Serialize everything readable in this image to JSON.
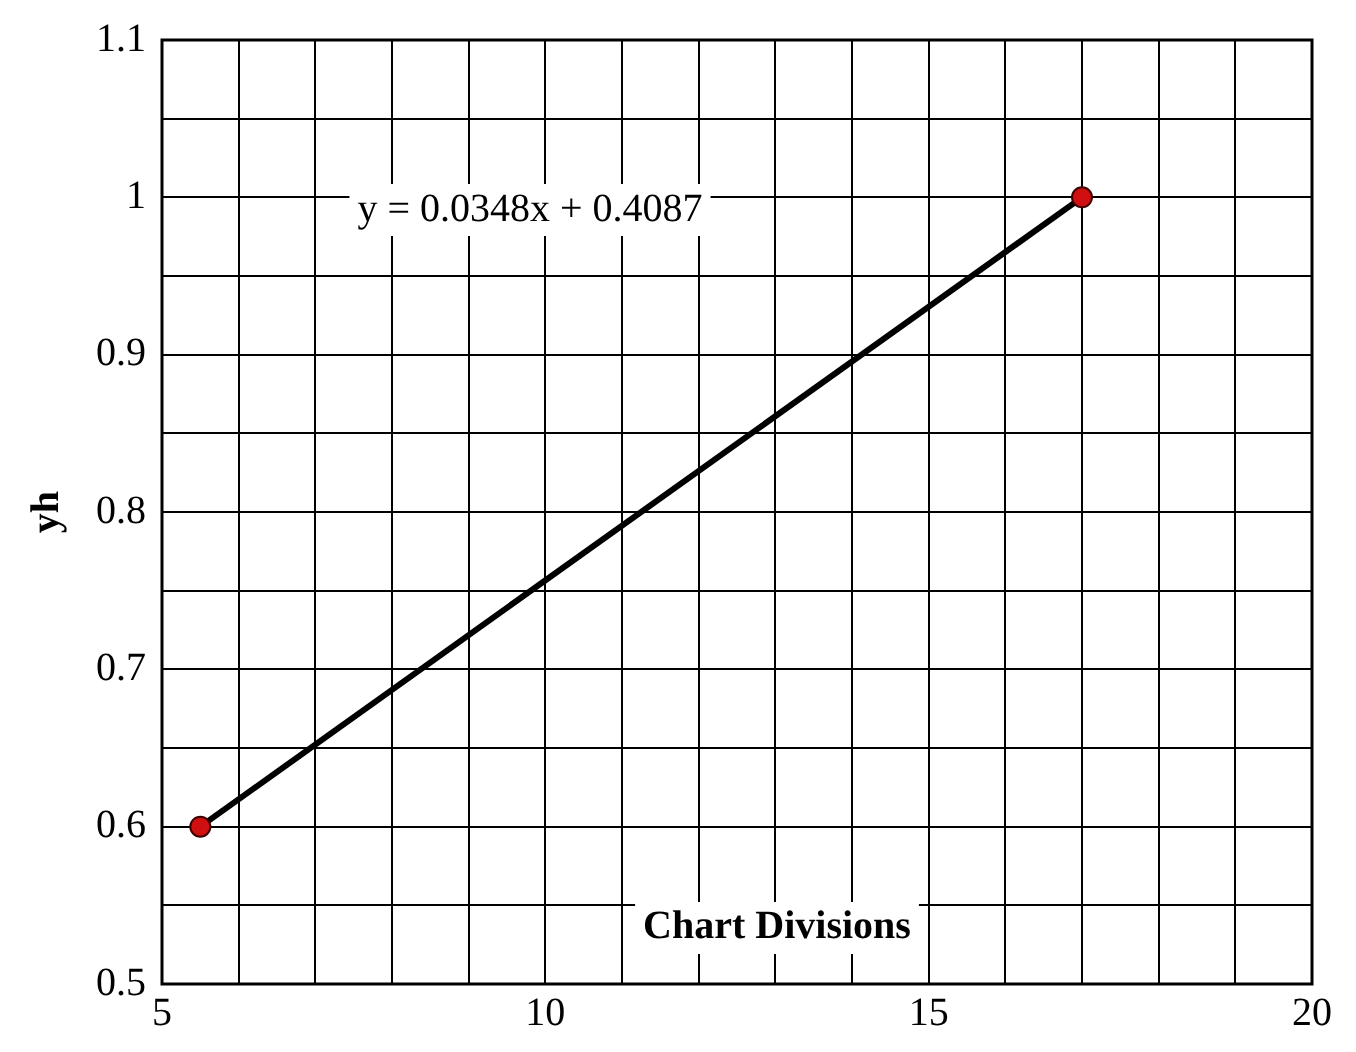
{
  "chart_data": {
    "type": "line",
    "xlabel": "Chart Divisions",
    "ylabel": "yh",
    "x": [
      5.5,
      17
    ],
    "series": [
      {
        "color": "#000000",
        "colors": [
          "#d01010",
          "#d01010"
        ],
        "values": [
          0.6,
          1.0
        ]
      }
    ],
    "xlim": [
      5,
      20
    ],
    "xticks": [
      5,
      {
        "value": 6,
        "label": null
      },
      {
        "value": 7,
        "label": null
      },
      {
        "value": 8,
        "label": null
      },
      {
        "value": 9,
        "label": null
      },
      10,
      {
        "value": 11,
        "label": null
      },
      {
        "value": 12,
        "label": null
      },
      {
        "value": 13,
        "label": null
      },
      {
        "value": 14,
        "label": null
      },
      15,
      {
        "value": 16,
        "label": null
      },
      {
        "value": 17,
        "label": null
      },
      {
        "value": 18,
        "label": null
      },
      {
        "value": 19,
        "label": null
      },
      20
    ],
    "ylim": [
      0.5,
      1.1
    ],
    "yticks": [
      0.5,
      {
        "value": 0.55,
        "label": null
      },
      0.6,
      {
        "value": 0.65,
        "label": null
      },
      0.7,
      {
        "value": 0.75,
        "label": null
      },
      0.8,
      {
        "value": 0.85,
        "label": null
      },
      0.9,
      {
        "value": 0.95,
        "label": null
      },
      1,
      {
        "value": 1.05,
        "label": null
      },
      1.1
    ],
    "annotations": [
      "y = 0.0348x + 0.4087"
    ],
    "grid": true,
    "legend": false,
    "marker": "circle",
    "line_style": "solid"
  }
}
